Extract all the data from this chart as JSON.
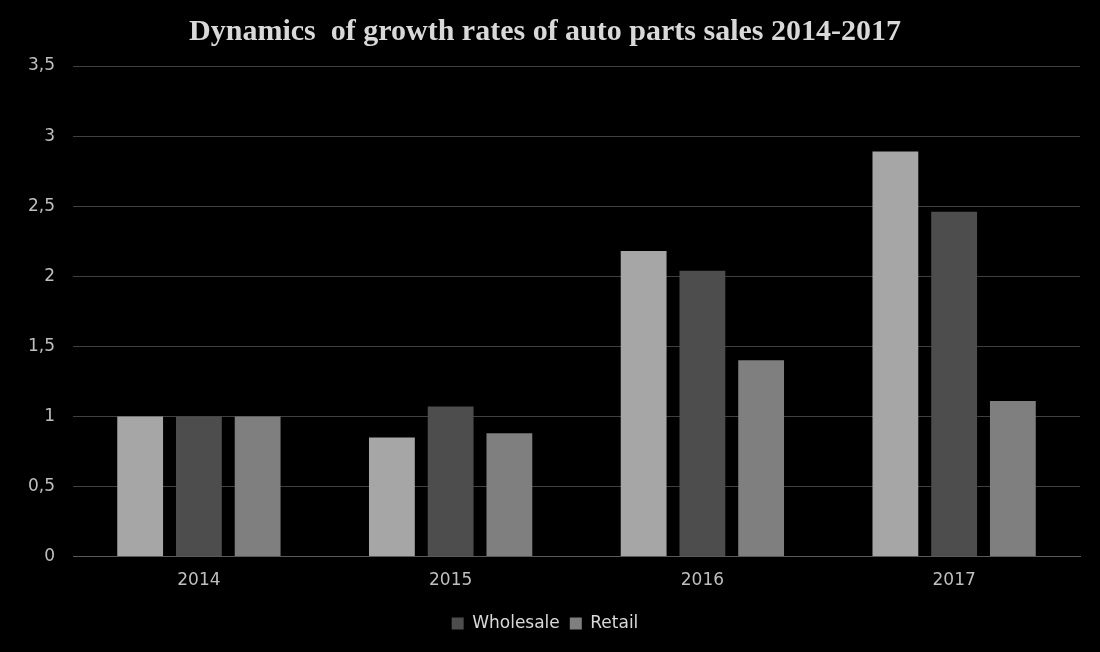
{
  "chart_data": {
    "type": "bar",
    "title": "Dynamics  of growth rates of auto parts sales 2014-2017",
    "categories": [
      "2014",
      "2015",
      "2016",
      "2017"
    ],
    "series": [
      {
        "color": "#a6a6a6",
        "values": [
          1,
          0.85,
          2.18,
          2.89
        ]
      },
      {
        "name": "Wholesale",
        "color": "#4d4d4d",
        "values": [
          1,
          1.07,
          2.04,
          2.46
        ]
      },
      {
        "name": "Retail",
        "color": "#7f7f7f",
        "values": [
          1,
          0.88,
          1.4,
          1.11
        ]
      }
    ],
    "ylim": [
      0,
      3.5
    ],
    "yticks": [
      0,
      {
        "value": 0.5,
        "label": "0,5"
      },
      1,
      {
        "value": 1.5,
        "label": "1,5"
      },
      2,
      {
        "value": 2.5,
        "label": "2,5"
      },
      3,
      {
        "value": 3.5,
        "label": "3,5"
      }
    ],
    "grid": "y",
    "legend": "bottom"
  }
}
